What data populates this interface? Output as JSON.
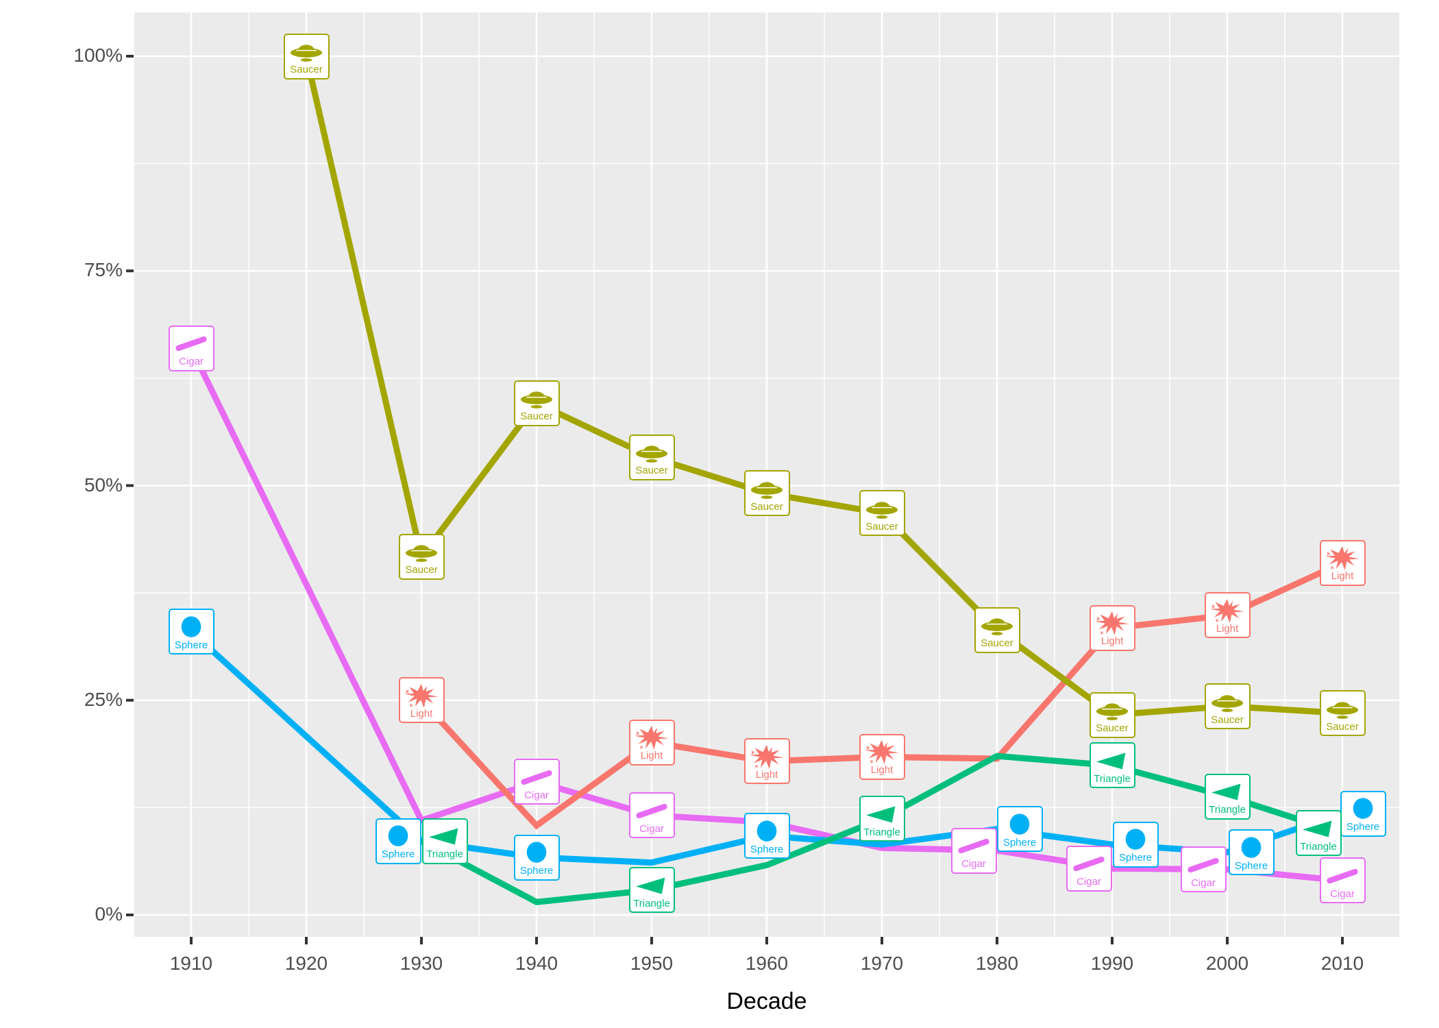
{
  "chart_data": {
    "type": "line",
    "title": "",
    "xlabel": "Decade",
    "ylabel": "",
    "x_ticks": [
      1910,
      1920,
      1930,
      1940,
      1950,
      1960,
      1970,
      1980,
      1990,
      2000,
      2010
    ],
    "y_ticks": [
      {
        "v": 0,
        "label": "0%"
      },
      {
        "v": 25,
        "label": "25%"
      },
      {
        "v": 50,
        "label": "50%"
      },
      {
        "v": 75,
        "label": "75%"
      },
      {
        "v": 100,
        "label": "100%"
      }
    ],
    "x_range": [
      1905,
      2015
    ],
    "y_range": [
      0,
      100
    ],
    "grid": true,
    "legend_position": "none (series labeled directly on lines with icon boxes)",
    "series": [
      {
        "name": "Cigar",
        "color": "#E76BF3",
        "icon": "cigar-icon",
        "points": [
          {
            "x": 1910,
            "y": 66.0,
            "label": true,
            "dx": 0
          },
          {
            "x": 1930,
            "y": 11.0,
            "label": false,
            "dx": 0
          },
          {
            "x": 1940,
            "y": 15.5,
            "label": true,
            "dx": 0
          },
          {
            "x": 1950,
            "y": 11.6,
            "label": true,
            "dx": 0
          },
          {
            "x": 1960,
            "y": 10.8,
            "label": false,
            "dx": 0
          },
          {
            "x": 1970,
            "y": 7.8,
            "label": false,
            "dx": 0
          },
          {
            "x": 1980,
            "y": 7.5,
            "label": true,
            "dx": -34
          },
          {
            "x": 1990,
            "y": 5.4,
            "label": true,
            "dx": -34
          },
          {
            "x": 2000,
            "y": 5.3,
            "label": true,
            "dx": -35
          },
          {
            "x": 2010,
            "y": 4.0,
            "label": true,
            "dx": 0
          }
        ]
      },
      {
        "name": "Light",
        "color": "#F8766D",
        "icon": "light-icon",
        "points": [
          {
            "x": 1930,
            "y": 25.0,
            "label": true,
            "dx": 0
          },
          {
            "x": 1940,
            "y": 10.4,
            "label": false,
            "dx": 0
          },
          {
            "x": 1950,
            "y": 20.1,
            "label": true,
            "dx": 0
          },
          {
            "x": 1960,
            "y": 17.9,
            "label": true,
            "dx": 0
          },
          {
            "x": 1970,
            "y": 18.4,
            "label": true,
            "dx": 0
          },
          {
            "x": 1980,
            "y": 18.2,
            "label": false,
            "dx": 0
          },
          {
            "x": 1990,
            "y": 33.4,
            "label": true,
            "dx": 0
          },
          {
            "x": 2000,
            "y": 34.9,
            "label": true,
            "dx": 0
          },
          {
            "x": 2010,
            "y": 41.0,
            "label": true,
            "dx": 0
          }
        ]
      },
      {
        "name": "Saucer",
        "color": "#A3A500",
        "icon": "saucer-icon",
        "points": [
          {
            "x": 1920,
            "y": 100.0,
            "label": true,
            "dx": 0
          },
          {
            "x": 1930,
            "y": 41.7,
            "label": true,
            "dx": 0
          },
          {
            "x": 1940,
            "y": 59.6,
            "label": true,
            "dx": 0
          },
          {
            "x": 1950,
            "y": 53.3,
            "label": true,
            "dx": 0
          },
          {
            "x": 1960,
            "y": 49.1,
            "label": true,
            "dx": 0
          },
          {
            "x": 1970,
            "y": 46.8,
            "label": true,
            "dx": 0
          },
          {
            "x": 1980,
            "y": 33.2,
            "label": true,
            "dx": 0
          },
          {
            "x": 1990,
            "y": 23.3,
            "label": true,
            "dx": 0
          },
          {
            "x": 2000,
            "y": 24.3,
            "label": true,
            "dx": 0
          },
          {
            "x": 2010,
            "y": 23.5,
            "label": true,
            "dx": 0
          }
        ]
      },
      {
        "name": "Sphere",
        "color": "#00B0F6",
        "icon": "sphere-icon",
        "points": [
          {
            "x": 1910,
            "y": 33.0,
            "label": true,
            "dx": 0
          },
          {
            "x": 1930,
            "y": 8.6,
            "label": true,
            "dx": -34
          },
          {
            "x": 1940,
            "y": 6.7,
            "label": true,
            "dx": 0
          },
          {
            "x": 1950,
            "y": 6.1,
            "label": false,
            "dx": 0
          },
          {
            "x": 1960,
            "y": 9.2,
            "label": true,
            "dx": 0
          },
          {
            "x": 1970,
            "y": 8.2,
            "label": false,
            "dx": 0
          },
          {
            "x": 1980,
            "y": 10.0,
            "label": true,
            "dx": 33
          },
          {
            "x": 1990,
            "y": 8.2,
            "label": true,
            "dx": 34
          },
          {
            "x": 2000,
            "y": 7.3,
            "label": true,
            "dx": 35
          },
          {
            "x": 2010,
            "y": 11.8,
            "label": true,
            "dx": 30
          }
        ]
      },
      {
        "name": "Triangle",
        "color": "#00BF7D",
        "icon": "triangle-icon",
        "points": [
          {
            "x": 1930,
            "y": 8.6,
            "label": true,
            "dx": 34
          },
          {
            "x": 1940,
            "y": 1.5,
            "label": false,
            "dx": 0
          },
          {
            "x": 1950,
            "y": 2.9,
            "label": true,
            "dx": 0
          },
          {
            "x": 1960,
            "y": 5.8,
            "label": false,
            "dx": 0
          },
          {
            "x": 1970,
            "y": 11.2,
            "label": true,
            "dx": 0
          },
          {
            "x": 1980,
            "y": 18.5,
            "label": false,
            "dx": 0
          },
          {
            "x": 1990,
            "y": 17.4,
            "label": true,
            "dx": 0
          },
          {
            "x": 2000,
            "y": 13.8,
            "label": true,
            "dx": 0
          },
          {
            "x": 2010,
            "y": 9.5,
            "label": true,
            "dx": -35
          }
        ]
      }
    ]
  },
  "style": {
    "panel_bg": "#EBEBEB",
    "grid_major_color": "#FFFFFF",
    "grid_minor_color": "#FFFFFF",
    "tick_color": "#333333",
    "axis_text_color": "#4D4D4D",
    "axis_title_color": "#000000",
    "label_box_bg": "#FFFFFF"
  }
}
